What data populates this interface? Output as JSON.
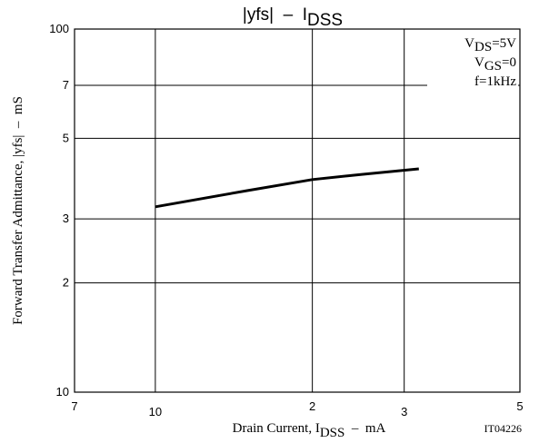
{
  "chart_data": {
    "type": "line",
    "title": {
      "main": "|yfs|  –  I",
      "sub": "DSS"
    },
    "x_label": {
      "main": "Drain Current, I",
      "sub": "DSS",
      "rest": "  –  mA"
    },
    "y_label": "Forward Transfer Admittance, |yfs|  –  mS",
    "figure_code": "IT04226",
    "annotations": [
      {
        "main": "V",
        "sub": "DS",
        "rest": "=5V"
      },
      {
        "main": "V",
        "sub": "GS",
        "rest": "=0"
      },
      {
        "main": "f=1kHz",
        "sub": "",
        "rest": ""
      }
    ],
    "x_log": true,
    "y_log": true,
    "grid": true,
    "xlim": [
      7,
      50
    ],
    "ylim": [
      10,
      100
    ],
    "xticks": [
      7,
      10,
      {
        "value": 20,
        "label": "2"
      },
      {
        "value": 30,
        "label": "3"
      },
      {
        "value": 50,
        "label": "5"
      }
    ],
    "yticks": [
      10,
      {
        "value": 20,
        "label": "2"
      },
      {
        "value": 30,
        "label": "3"
      },
      {
        "value": 50,
        "label": "5"
      },
      {
        "value": 70,
        "label": "7"
      },
      100
    ],
    "series": [
      {
        "color": "#000000",
        "x": [
          10,
          15,
          20,
          25,
          32
        ],
        "values": [
          32.4,
          35.9,
          38.5,
          39.8,
          41.2
        ]
      }
    ]
  }
}
